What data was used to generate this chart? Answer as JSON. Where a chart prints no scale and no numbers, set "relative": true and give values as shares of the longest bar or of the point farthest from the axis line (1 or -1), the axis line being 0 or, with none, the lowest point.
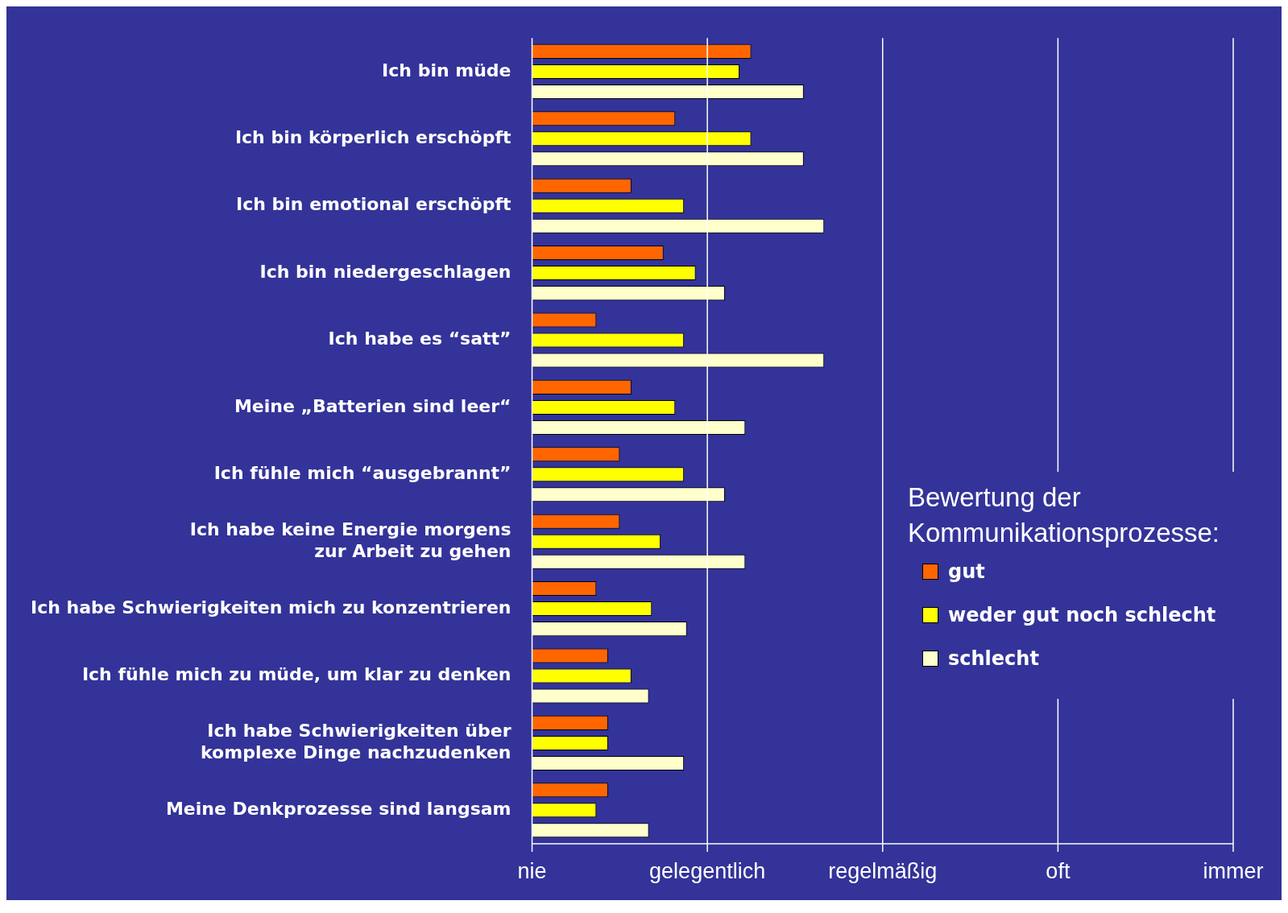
{
  "chart_data": {
    "type": "bar",
    "orientation": "horizontal",
    "relative": true,
    "legend_title": "Bewertung der Kommunikationsprozesse:",
    "legend": "bottom right",
    "categories": [
      "Ich bin müde",
      "Ich bin körperlich erschöpft",
      "Ich bin emotional erschöpft",
      "Ich bin niedergeschlagen",
      "Ich habe es “satt”",
      "Meine „Batterien sind leer“",
      "Ich fühle mich “ausgebrannt”",
      "Ich habe keine Energie morgens zur Arbeit zu gehen",
      "Ich habe Schwierigkeiten mich zu konzentrieren",
      "Ich fühle mich zu müde, um klar zu denken",
      "Ich habe Schwierigkeiten über komplexe Dinge nachzudenken",
      "Meine Denkprozesse sind langsam"
    ],
    "annotations": [
      "nie",
      "gelegentlich",
      "regelmäßig",
      "oft",
      "immer"
    ],
    "series": [
      {
        "name": "gut",
        "color": "#ff6600",
        "values": [
          0.75,
          0.49,
          0.34,
          0.45,
          0.22,
          0.34,
          0.3,
          0.3,
          0.22,
          0.26,
          0.26,
          0.26
        ]
      },
      {
        "name": "weder gut noch schlecht",
        "color": "#ffff00",
        "values": [
          0.71,
          0.75,
          0.52,
          0.56,
          0.52,
          0.49,
          0.52,
          0.44,
          0.41,
          0.34,
          0.26,
          0.22
        ]
      },
      {
        "name": "schlecht",
        "color": "#ffffcc",
        "values": [
          0.93,
          0.93,
          1,
          0.66,
          1,
          0.73,
          0.66,
          0.73,
          0.53,
          0.4,
          0.52,
          0.4
        ]
      }
    ]
  }
}
